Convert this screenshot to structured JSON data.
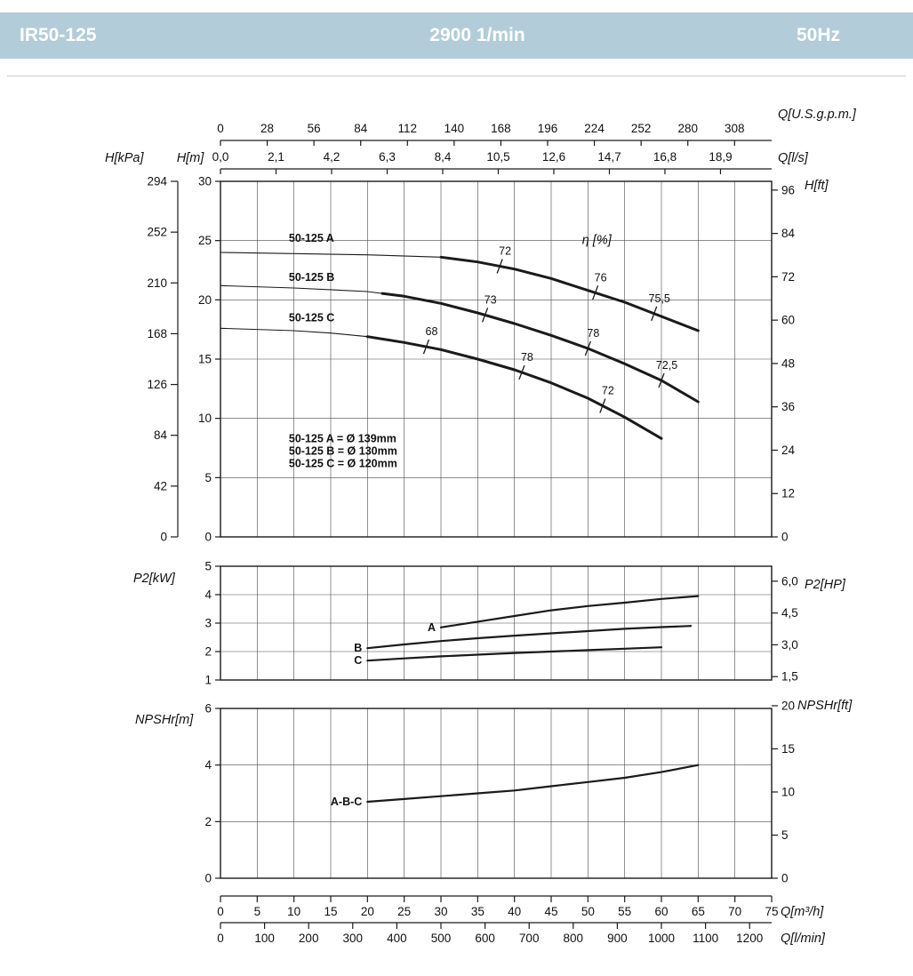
{
  "header": {
    "model": "IR50-125",
    "speed": "2900 1/min",
    "frequency": "50Hz"
  },
  "colors": {
    "header_bg": "#b2ccd9",
    "header_fg": "#ffffff",
    "separator": "#cccccc",
    "curve": "#1a1a1a",
    "grid": "#4a4a4a",
    "frame": "#1a1a1a",
    "text": "#111111"
  },
  "chart_data": {
    "type": "line",
    "title": "IR50-125 pump performance curves, 2900 1/min, 50Hz",
    "x": {
      "unit": "m³/h",
      "min": 0,
      "max": 75,
      "grid_step": 5
    },
    "axes": {
      "usgpm": {
        "label": "Q[U.S.g.p.m.]",
        "to_m3h": 0.2271247,
        "ticks": [
          0,
          28,
          56,
          84,
          112,
          140,
          168,
          196,
          224,
          252,
          280,
          308
        ]
      },
      "ls": {
        "label": "Q[l/s]",
        "to_m3h": 3.6,
        "ticks": [
          0,
          2.1,
          4.2,
          6.3,
          8.4,
          10.5,
          12.6,
          14.7,
          16.8,
          18.9
        ],
        "tick_labels": [
          "0,0",
          "2,1",
          "4,2",
          "6,3",
          "8,4",
          "10,5",
          "12,6",
          "14,7",
          "16,8",
          "18,9"
        ]
      },
      "m3h": {
        "label": "Q[m³/h]",
        "ticks": [
          0,
          5,
          10,
          15,
          20,
          25,
          30,
          35,
          40,
          45,
          50,
          55,
          60,
          65,
          70,
          75
        ]
      },
      "lmin": {
        "label": "Q[l/min]",
        "to_m3h": 0.06,
        "ticks": [
          0,
          100,
          200,
          300,
          400,
          500,
          600,
          700,
          800,
          900,
          1000,
          1100,
          1200
        ]
      }
    },
    "head": {
      "left_outer_label": "H[kPa]",
      "left_label": "H[m]",
      "right_label": "H[ft]",
      "ymin": 0,
      "ymax": 30,
      "yticks": [
        0,
        5,
        10,
        15,
        20,
        25,
        30
      ],
      "kpa_ticks": [
        0,
        42,
        84,
        126,
        168,
        210,
        252,
        294
      ],
      "ft_ticks": [
        0,
        12,
        24,
        36,
        48,
        60,
        72,
        84,
        96
      ],
      "eta_symbol": "η [%]",
      "eta_pos": [
        49.2,
        25.0
      ],
      "notes": [
        "50-125 A = Ø 139mm",
        "50-125 B = Ø 130mm",
        "50-125 C = Ø 120mm"
      ],
      "notes_pos": [
        9.3,
        8.0
      ],
      "curves": [
        {
          "name": "50-125 A",
          "label_pos": [
            9.3,
            25.2
          ],
          "thick_from": 30,
          "points": [
            [
              0,
              24.0
            ],
            [
              10,
              23.9
            ],
            [
              20,
              23.8
            ],
            [
              30,
              23.6
            ],
            [
              35,
              23.2
            ],
            [
              40,
              22.6
            ],
            [
              45,
              21.8
            ],
            [
              50,
              20.8
            ],
            [
              55,
              19.8
            ],
            [
              60,
              18.6
            ],
            [
              65,
              17.4
            ]
          ],
          "eta_marks": [
            [
              38,
              "72"
            ],
            [
              51,
              "76"
            ],
            [
              59,
              "75,5"
            ]
          ]
        },
        {
          "name": "50-125 B",
          "label_pos": [
            9.3,
            21.9
          ],
          "thick_from": 22,
          "points": [
            [
              0,
              21.2
            ],
            [
              10,
              21.0
            ],
            [
              20,
              20.7
            ],
            [
              25,
              20.3
            ],
            [
              30,
              19.7
            ],
            [
              35,
              18.9
            ],
            [
              40,
              18.0
            ],
            [
              45,
              17.0
            ],
            [
              50,
              15.9
            ],
            [
              55,
              14.6
            ],
            [
              60,
              13.2
            ],
            [
              65,
              11.4
            ]
          ],
          "eta_marks": [
            [
              36,
              "73"
            ],
            [
              50,
              "78"
            ],
            [
              60,
              "72,5"
            ]
          ]
        },
        {
          "name": "50-125 C",
          "label_pos": [
            9.3,
            18.5
          ],
          "thick_from": 20,
          "points": [
            [
              0,
              17.6
            ],
            [
              10,
              17.4
            ],
            [
              15,
              17.2
            ],
            [
              20,
              16.9
            ],
            [
              25,
              16.4
            ],
            [
              30,
              15.8
            ],
            [
              35,
              15.0
            ],
            [
              40,
              14.1
            ],
            [
              45,
              13.0
            ],
            [
              50,
              11.7
            ],
            [
              55,
              10.1
            ],
            [
              60,
              8.3
            ]
          ],
          "eta_marks": [
            [
              28,
              "68"
            ],
            [
              41,
              "78"
            ],
            [
              52,
              "72"
            ]
          ]
        }
      ]
    },
    "power": {
      "left_label": "P2[kW]",
      "right_label": "P2[HP]",
      "ymin": 1,
      "ymax": 5,
      "yticks": [
        1,
        2,
        3,
        4,
        5
      ],
      "hp_ticks": [
        1.5,
        3.0,
        4.5,
        6.0
      ],
      "hp_tick_labels": [
        "1,5",
        "3,0",
        "4,5",
        "6,0"
      ],
      "kw_per_hp": 0.7457,
      "curves": [
        {
          "name": "A",
          "points": [
            [
              30,
              2.85
            ],
            [
              35,
              3.05
            ],
            [
              40,
              3.25
            ],
            [
              45,
              3.45
            ],
            [
              50,
              3.6
            ],
            [
              55,
              3.72
            ],
            [
              60,
              3.85
            ],
            [
              65,
              3.95
            ]
          ]
        },
        {
          "name": "B",
          "points": [
            [
              20,
              2.12
            ],
            [
              25,
              2.25
            ],
            [
              30,
              2.37
            ],
            [
              35,
              2.47
            ],
            [
              40,
              2.56
            ],
            [
              45,
              2.64
            ],
            [
              50,
              2.72
            ],
            [
              55,
              2.8
            ],
            [
              60,
              2.86
            ],
            [
              64,
              2.9
            ]
          ]
        },
        {
          "name": "C",
          "points": [
            [
              20,
              1.68
            ],
            [
              25,
              1.76
            ],
            [
              30,
              1.83
            ],
            [
              35,
              1.89
            ],
            [
              40,
              1.95
            ],
            [
              45,
              2.0
            ],
            [
              50,
              2.05
            ],
            [
              55,
              2.1
            ],
            [
              60,
              2.15
            ]
          ]
        }
      ]
    },
    "npsh": {
      "left_label": "NPSHr[m]",
      "right_label": "NPSHr[ft]",
      "ymin": 0,
      "ymax": 6,
      "yticks": [
        0,
        2,
        4,
        6
      ],
      "ft_ticks": [
        0,
        5,
        10,
        15,
        20
      ],
      "m_per_ft": 0.3048,
      "curves": [
        {
          "name": "A-B-C",
          "points": [
            [
              20,
              2.7
            ],
            [
              25,
              2.8
            ],
            [
              30,
              2.9
            ],
            [
              35,
              3.0
            ],
            [
              40,
              3.1
            ],
            [
              45,
              3.25
            ],
            [
              50,
              3.4
            ],
            [
              55,
              3.55
            ],
            [
              60,
              3.75
            ],
            [
              65,
              4.0
            ]
          ]
        }
      ]
    }
  }
}
